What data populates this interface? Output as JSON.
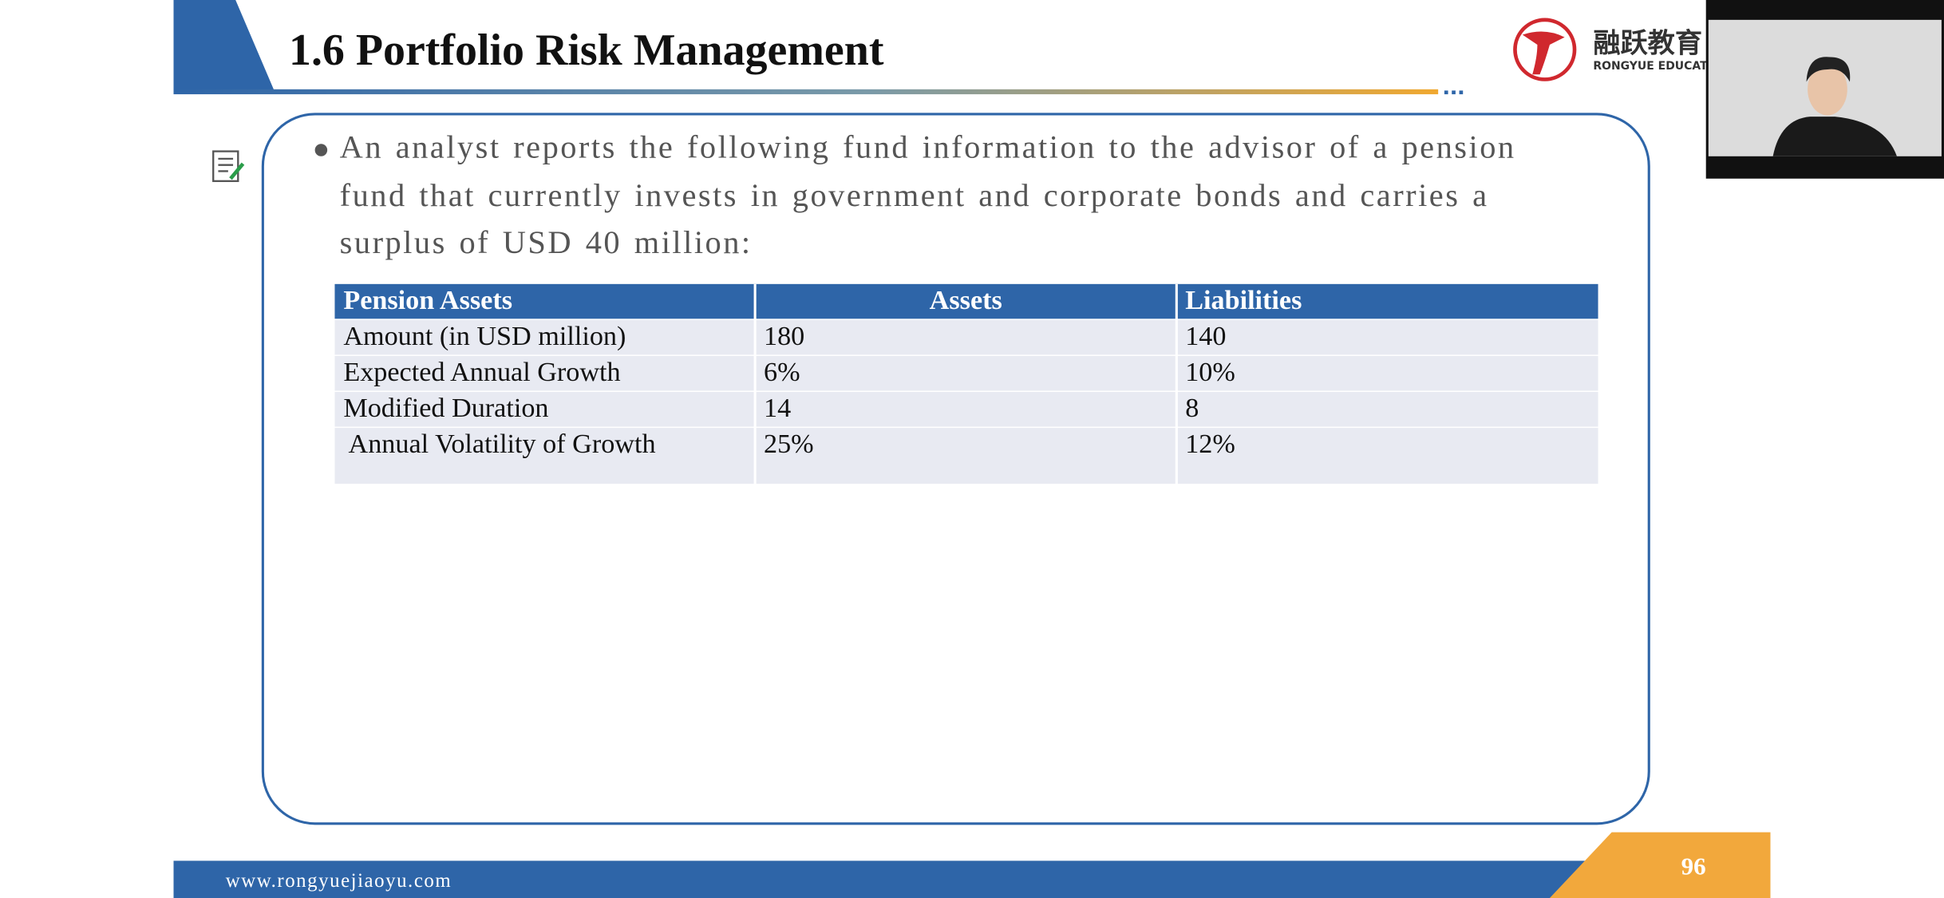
{
  "header": {
    "title": "1.6 Portfolio Risk Management",
    "logo_text": "融跃教育",
    "logo_subtitle": "RONGYUE EDUCATION"
  },
  "content": {
    "bullet": "An analyst reports the following fund information to the advisor of a pension fund that currently invests in government and corporate bonds and carries a surplus of USD 40 million:",
    "table": {
      "columns": [
        "Pension Assets",
        "Assets",
        "Liabilities"
      ],
      "rows": [
        [
          "Amount (in USD million)",
          "180",
          "140"
        ],
        [
          "Expected Annual Growth",
          "6%",
          "10%"
        ],
        [
          "Modified Duration",
          "14",
          "8"
        ],
        [
          "Annual Volatility of Growth",
          "25%",
          "12%"
        ]
      ]
    }
  },
  "footer": {
    "url": "www.rongyuejiaoyu.com",
    "page_number": "96"
  }
}
